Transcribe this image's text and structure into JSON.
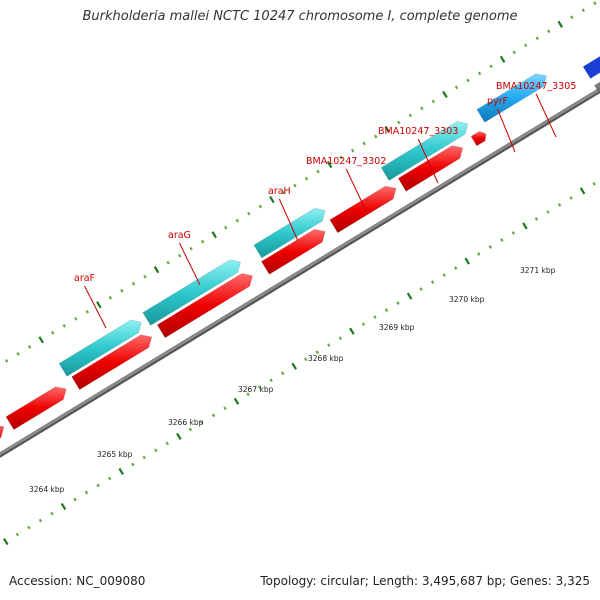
{
  "title": "Burkholderia mallei NCTC 10247 chromosome I, complete genome",
  "accession": "Accession: NC_009080",
  "topology": "Topology: circular; Length: 3,495,687 bp; Genes: 3,325",
  "gene_labels": [
    {
      "name": "araF"
    },
    {
      "name": "araG"
    },
    {
      "name": "araH"
    },
    {
      "name": "BMA10247_3302"
    },
    {
      "name": "BMA10247_3303"
    },
    {
      "name": "pyrF"
    },
    {
      "name": "BMA10247_3305"
    }
  ],
  "scale_ticks": [
    {
      "label": "3264 kbp"
    },
    {
      "label": "3265 kbp"
    },
    {
      "label": "3266 kbp"
    },
    {
      "label": "3267 kbp"
    },
    {
      "label": "3268 kbp"
    },
    {
      "label": "3269 kbp"
    },
    {
      "label": "3270 kbp"
    },
    {
      "label": "3271 kbp"
    }
  ],
  "colors": {
    "cds": "#ff1a1a",
    "gene": "#2ec8cc",
    "highlight": "#22aaf0",
    "label": "#cc0000",
    "tick_major": "#1a7a1a",
    "tick_minor": "#66aa44",
    "backbone": "#8c8c8c",
    "neighbor": "#1a3fd6"
  }
}
